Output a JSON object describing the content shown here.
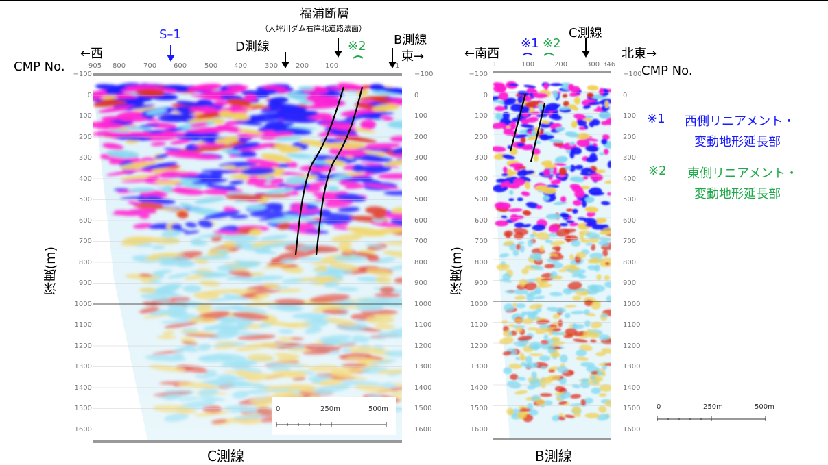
{
  "colors": {
    "magenta": "#ff1cd2",
    "blue": "#1a1aff",
    "cyan": "#7fd8f0",
    "yellow": "#f0d055",
    "red": "#e03020",
    "green": "#1fa84a",
    "label_blue": "#1a1aff",
    "tick_grey": "#777777"
  },
  "header": {
    "fault_name": "福浦断層",
    "fault_sub": "（大坪川ダム右岸北道路法面）"
  },
  "left": {
    "west": "←西",
    "east": "東→",
    "cmp_label": "CMP No.",
    "s1": "S–1",
    "d_line": "D測線",
    "b_line": "B測線",
    "mark2": "※2",
    "cmp_ticks": [
      "905",
      "800",
      "700",
      "600",
      "500",
      "400",
      "300",
      "200",
      "100",
      "1"
    ],
    "bottom_label": "C測線"
  },
  "right": {
    "southwest": "←南西",
    "northeast": "北東→",
    "cmp_label": "CMP No.",
    "mark1": "※1",
    "mark2": "※2",
    "c_line": "C測線",
    "cmp_ticks": [
      "1",
      "100",
      "200",
      "300",
      "346"
    ],
    "bottom_label": "B測線"
  },
  "depth_axis": {
    "label": "深度(m)",
    "ticks": [
      "−100",
      "0",
      "100",
      "200",
      "300",
      "400",
      "500",
      "600",
      "700",
      "800",
      "900",
      "1000",
      "1100",
      "1200",
      "1300",
      "1400",
      "1500",
      "1600"
    ]
  },
  "legend": {
    "note1_mark": "※1",
    "note1_line1": "西側リニアメント・",
    "note1_line2": "変動地形延長部",
    "note2_mark": "※2",
    "note2_line1": "東側リニアメント・",
    "note2_line2": "変動地形延長部"
  },
  "scale_left": {
    "t0": "0",
    "t1": "250m",
    "t2": "500m"
  },
  "scale_right": {
    "t0": "0",
    "t1": "250m",
    "t2": "500m"
  }
}
